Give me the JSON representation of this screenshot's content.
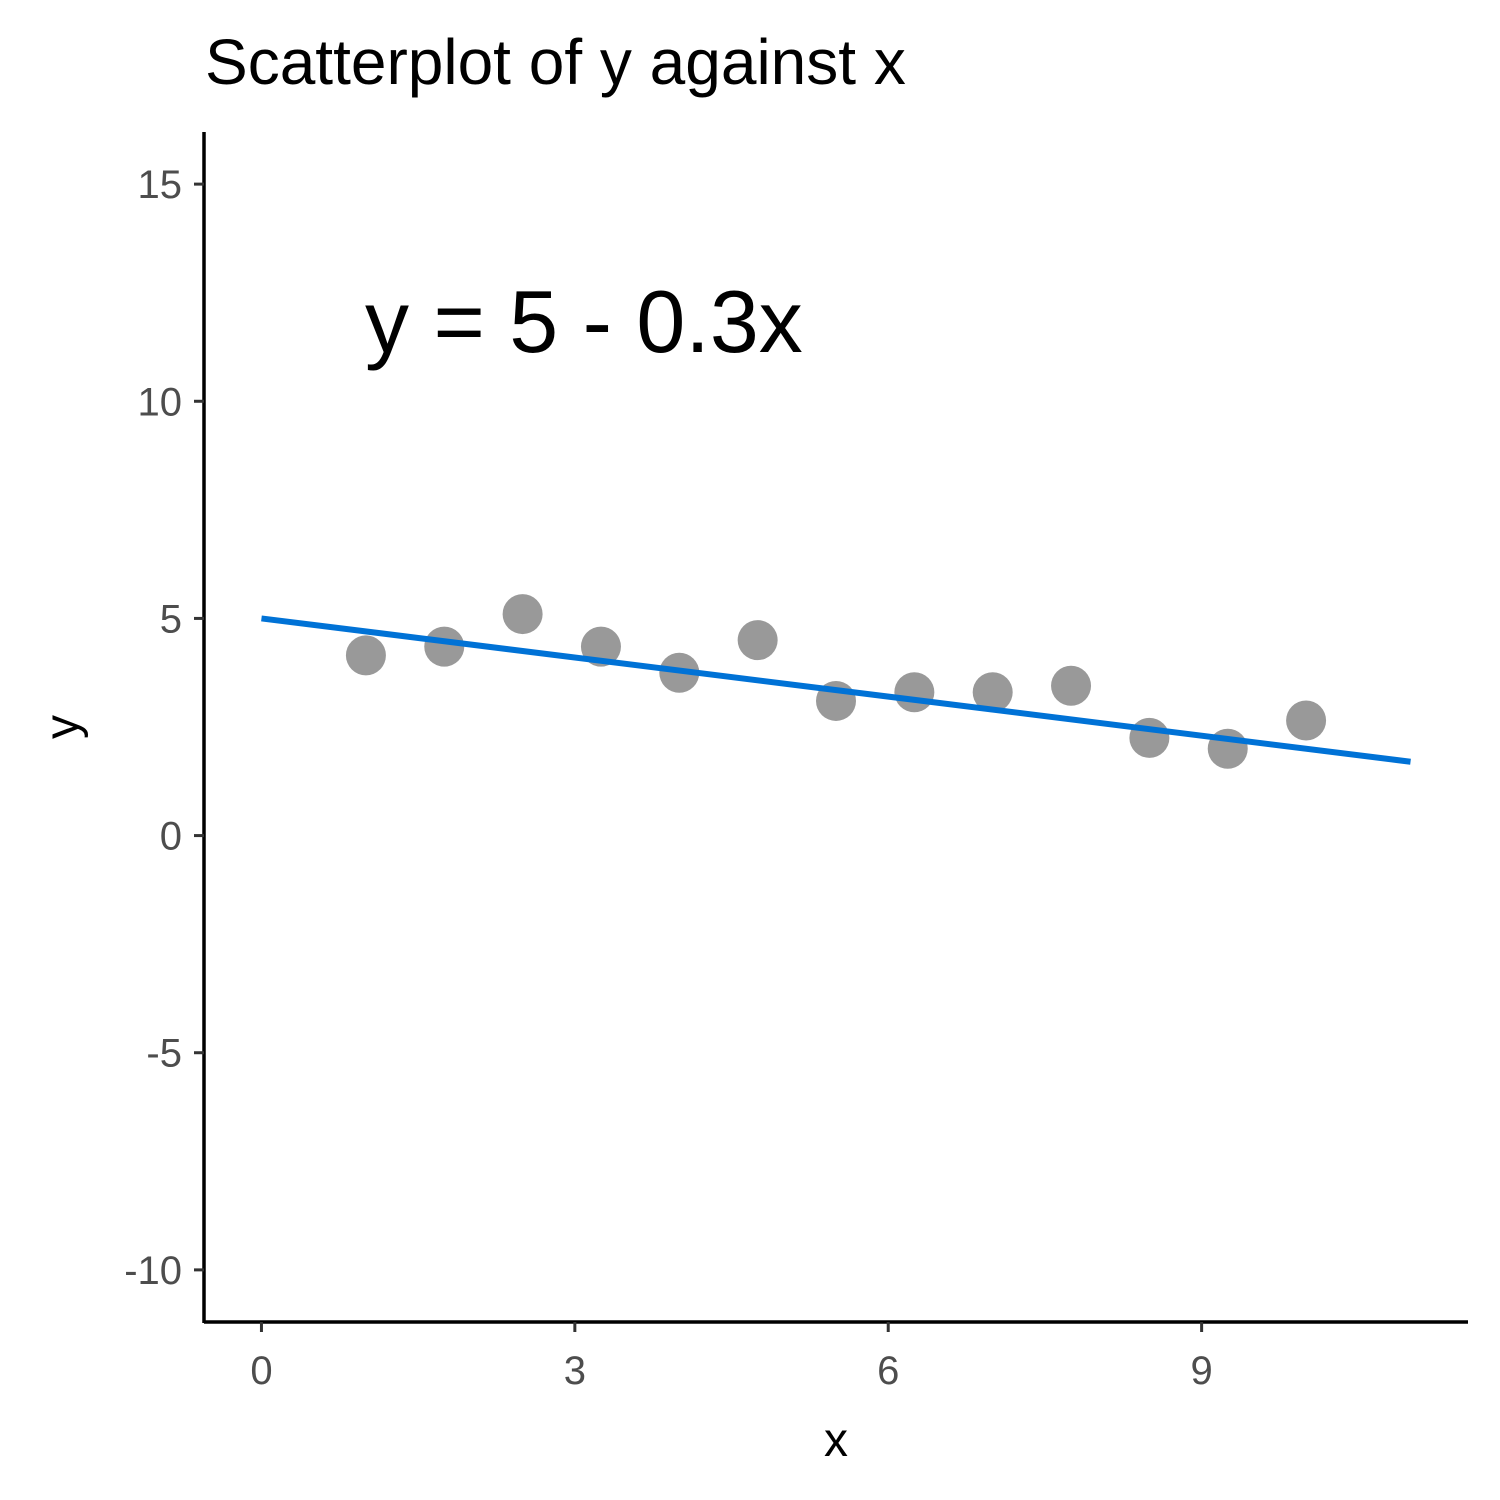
{
  "chart_data": {
    "type": "scatter",
    "title": "Scatterplot of y against x",
    "xlabel": "x",
    "ylabel": "y",
    "xlim": [
      -0.55,
      11.55
    ],
    "ylim": [
      -11.2,
      16.2
    ],
    "x_ticks": [
      0,
      3,
      6,
      9
    ],
    "y_ticks": [
      -10,
      -5,
      0,
      5,
      10,
      15
    ],
    "grid": false,
    "annotation": "y = 5 - 0.3x",
    "points": [
      {
        "x": 1.0,
        "y": 4.15
      },
      {
        "x": 1.75,
        "y": 4.35
      },
      {
        "x": 2.5,
        "y": 5.1
      },
      {
        "x": 3.25,
        "y": 4.35
      },
      {
        "x": 4.0,
        "y": 3.75
      },
      {
        "x": 4.75,
        "y": 4.5
      },
      {
        "x": 5.5,
        "y": 3.1
      },
      {
        "x": 6.25,
        "y": 3.3
      },
      {
        "x": 7.0,
        "y": 3.3
      },
      {
        "x": 7.75,
        "y": 3.45
      },
      {
        "x": 8.5,
        "y": 2.25
      },
      {
        "x": 9.25,
        "y": 2.0
      },
      {
        "x": 10.0,
        "y": 2.65
      }
    ],
    "trend_line": {
      "intercept": 5,
      "slope": -0.3,
      "x_range": [
        0,
        11
      ]
    },
    "colors": {
      "points": "#999999",
      "line": "#0072D6"
    }
  }
}
